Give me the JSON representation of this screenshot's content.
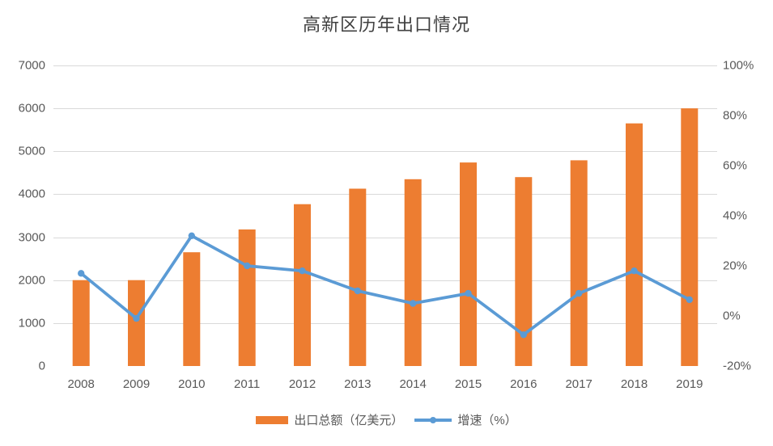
{
  "title": "高新区历年出口情况",
  "colors": {
    "bar": "#ED7D31",
    "line": "#5B9BD5",
    "gridline": "#D9D9D9",
    "axis_text": "#595959",
    "title_text": "#404040",
    "background": "#FFFFFF"
  },
  "chart_data": {
    "type": "bar",
    "subtype": "bar+line-combo",
    "title": "高新区历年出口情况",
    "categories": [
      "2008",
      "2009",
      "2010",
      "2011",
      "2012",
      "2013",
      "2014",
      "2015",
      "2016",
      "2017",
      "2018",
      "2019"
    ],
    "series": [
      {
        "name": "出口总额（亿美元）",
        "type": "bar",
        "axis": "left",
        "values": [
          2000,
          2000,
          2650,
          3180,
          3770,
          4130,
          4350,
          4740,
          4400,
          4790,
          5650,
          6000
        ]
      },
      {
        "name": "增速（%）",
        "type": "line",
        "axis": "right",
        "values": [
          17,
          -1,
          32,
          20,
          18,
          10,
          5,
          9,
          -7.5,
          9,
          18,
          6.5
        ]
      }
    ],
    "left_axis": {
      "min": 0,
      "max": 7000,
      "step": 1000,
      "tick_labels": [
        "7000",
        "6000",
        "5000",
        "4000",
        "3000",
        "2000",
        "1000",
        "0"
      ]
    },
    "right_axis": {
      "min": -20,
      "max": 100,
      "step": 20,
      "tick_labels": [
        "100%",
        "80%",
        "60%",
        "40%",
        "20%",
        "0%",
        "-20%"
      ]
    },
    "grid": "horizontal-on",
    "legend_position": "bottom"
  }
}
